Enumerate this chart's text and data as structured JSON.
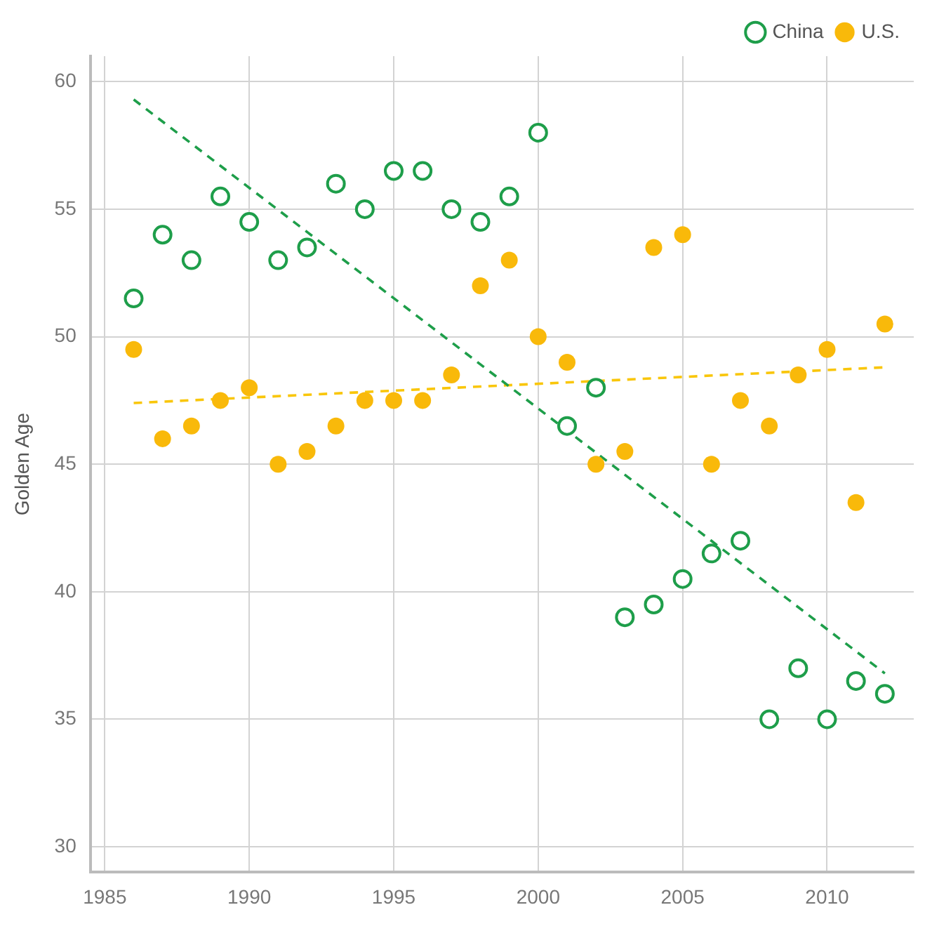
{
  "chart_data": {
    "type": "scatter",
    "ylabel": "Golden Age",
    "xlim": [
      1984.5,
      2013
    ],
    "xticks": [
      1985,
      1990,
      1995,
      2000,
      2005,
      2010
    ],
    "ylim": [
      29,
      61
    ],
    "yticks": [
      30,
      35,
      40,
      45,
      50,
      55,
      60
    ],
    "grid": true,
    "legend": "top right",
    "series": [
      {
        "name": "China",
        "color": "#1e9e4a",
        "marker": "circle",
        "x": [
          1986,
          1987,
          1988,
          1989,
          1990,
          1991,
          1992,
          1993,
          1994,
          1995,
          1996,
          1997,
          1998,
          1999,
          2000,
          2001,
          2002,
          2003,
          2004,
          2005,
          2006,
          2007,
          2008,
          2009,
          2010,
          2011,
          2012
        ],
        "values": [
          51.5,
          54,
          53,
          55.5,
          54.5,
          53,
          53.5,
          56,
          55,
          56.5,
          56.5,
          55,
          54.5,
          55.5,
          58,
          46.5,
          48,
          39,
          39.5,
          40.5,
          41.5,
          42,
          35,
          37,
          35,
          36.5,
          36
        ]
      },
      {
        "name": "U.S.",
        "color": "#f9b90a",
        "marker": "circle",
        "x": [
          1986,
          1987,
          1988,
          1989,
          1990,
          1991,
          1992,
          1993,
          1994,
          1995,
          1996,
          1997,
          1998,
          1999,
          2000,
          2001,
          2002,
          2003,
          2004,
          2005,
          2006,
          2007,
          2008,
          2009,
          2010,
          2011,
          2012
        ],
        "values": [
          49.5,
          46,
          46.5,
          47.5,
          48,
          45,
          45.5,
          46.5,
          47.5,
          47.5,
          47.5,
          48.5,
          52,
          53,
          50,
          49,
          45,
          45.5,
          53.5,
          54,
          45,
          47.5,
          46.5,
          48.5,
          49.5,
          43.5,
          50.5
        ]
      },
      {
        "type": "line",
        "color": "#1e9e4a",
        "line_style": "dashed",
        "marker": "none",
        "x": [
          1986,
          2012
        ],
        "values": [
          59.3,
          36.8
        ]
      },
      {
        "type": "line",
        "color": "#f9c60a",
        "line_style": "dashed",
        "marker": "none",
        "x": [
          1986,
          2012
        ],
        "values": [
          47.4,
          48.8
        ]
      }
    ]
  }
}
